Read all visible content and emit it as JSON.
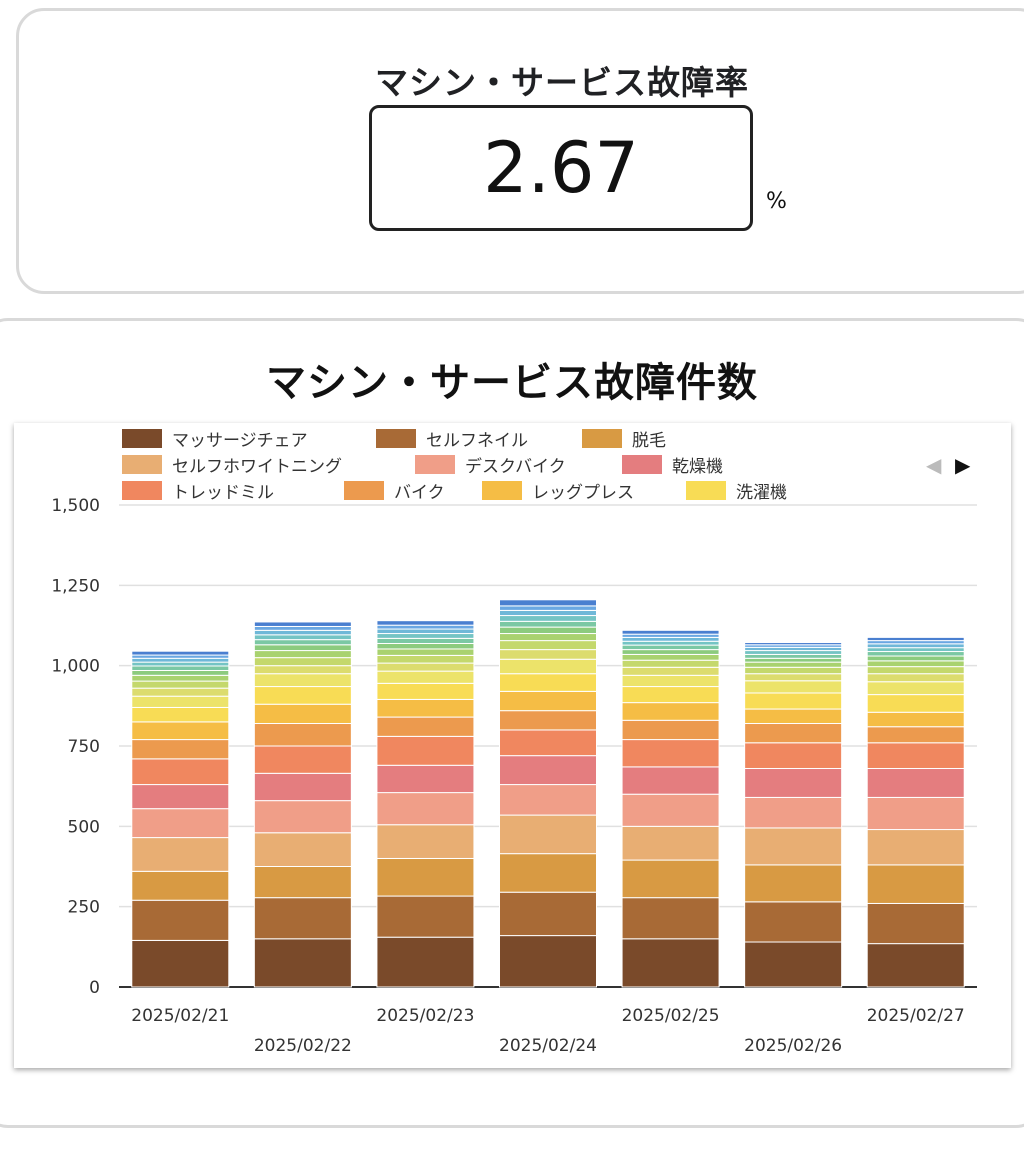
{
  "kpi": {
    "title": "マシン・サービス故障率",
    "value": "2.67",
    "unit": "%"
  },
  "chart_title": "マシン・サービス故障件数",
  "legend_nav": {
    "prev": "◀",
    "next": "▶"
  },
  "chart_data": {
    "type": "bar",
    "stacked": true,
    "title": "マシン・サービス故障件数",
    "xlabel": "",
    "ylabel": "",
    "ylim": [
      0,
      1500
    ],
    "yticks": [
      0,
      250,
      500,
      750,
      1000,
      1250,
      1500
    ],
    "ytick_labels": [
      "0",
      "250",
      "500",
      "750",
      "1,000",
      "1,250",
      "1,500"
    ],
    "grid": true,
    "legend_position": "top",
    "categories": [
      "2025/02/21",
      "2025/02/22",
      "2025/02/23",
      "2025/02/24",
      "2025/02/25",
      "2025/02/26",
      "2025/02/27"
    ],
    "series": [
      {
        "name": "マッサージチェア",
        "color": "#7a4a2a",
        "values": [
          145,
          150,
          155,
          160,
          150,
          140,
          135
        ]
      },
      {
        "name": "セルフネイル",
        "color": "#a86a36",
        "values": [
          125,
          128,
          128,
          135,
          128,
          125,
          125
        ]
      },
      {
        "name": "脱毛",
        "color": "#d89a43",
        "values": [
          90,
          97,
          117,
          120,
          117,
          115,
          120
        ]
      },
      {
        "name": "セルフホワイトニング",
        "color": "#e8ae73",
        "values": [
          105,
          105,
          105,
          120,
          105,
          115,
          110
        ]
      },
      {
        "name": "デスクバイク",
        "color": "#f09e88",
        "values": [
          90,
          100,
          100,
          95,
          100,
          95,
          100
        ]
      },
      {
        "name": "乾燥機",
        "color": "#e47d7f",
        "values": [
          75,
          85,
          85,
          90,
          85,
          90,
          90
        ]
      },
      {
        "name": "トレッドミル",
        "color": "#f0875f",
        "values": [
          80,
          85,
          90,
          80,
          85,
          80,
          80
        ]
      },
      {
        "name": "バイク",
        "color": "#ec9a4e",
        "values": [
          60,
          70,
          60,
          60,
          60,
          60,
          50
        ]
      },
      {
        "name": "レッグプレス",
        "color": "#f5bd45",
        "values": [
          55,
          60,
          55,
          60,
          55,
          45,
          45
        ]
      },
      {
        "name": "洗濯機",
        "color": "#f8dc55",
        "values": [
          45,
          55,
          50,
          55,
          50,
          50,
          55
        ],
        "note_unused": ""
      },
      {
        "color": "#ece36a",
        "values": [
          35,
          40,
          38,
          45,
          35,
          38,
          40
        ]
      },
      {
        "color": "#dcdc6e",
        "values": [
          25,
          25,
          25,
          30,
          25,
          22,
          25
        ]
      },
      {
        "color": "#c4d86c",
        "values": [
          22,
          25,
          24,
          28,
          22,
          20,
          22
        ]
      },
      {
        "color": "#a9d26f",
        "values": [
          18,
          22,
          20,
          22,
          18,
          16,
          18
        ]
      },
      {
        "color": "#8ccb7e",
        "values": [
          15,
          18,
          17,
          20,
          15,
          12,
          15
        ]
      },
      {
        "color": "#7bc8a4",
        "values": [
          14,
          16,
          16,
          18,
          14,
          12,
          14
        ]
      },
      {
        "color": "#74c4c4",
        "values": [
          12,
          15,
          15,
          18,
          12,
          12,
          12
        ]
      },
      {
        "color": "#6fb8d8",
        "values": [
          12,
          14,
          14,
          16,
          12,
          10,
          12
        ]
      },
      {
        "color": "#6aa7e2",
        "values": [
          10,
          12,
          12,
          14,
          10,
          8,
          10
        ]
      },
      {
        "color": "#4a7fd0",
        "values": [
          12,
          14,
          14,
          19,
          12,
          7,
          10
        ]
      }
    ]
  }
}
